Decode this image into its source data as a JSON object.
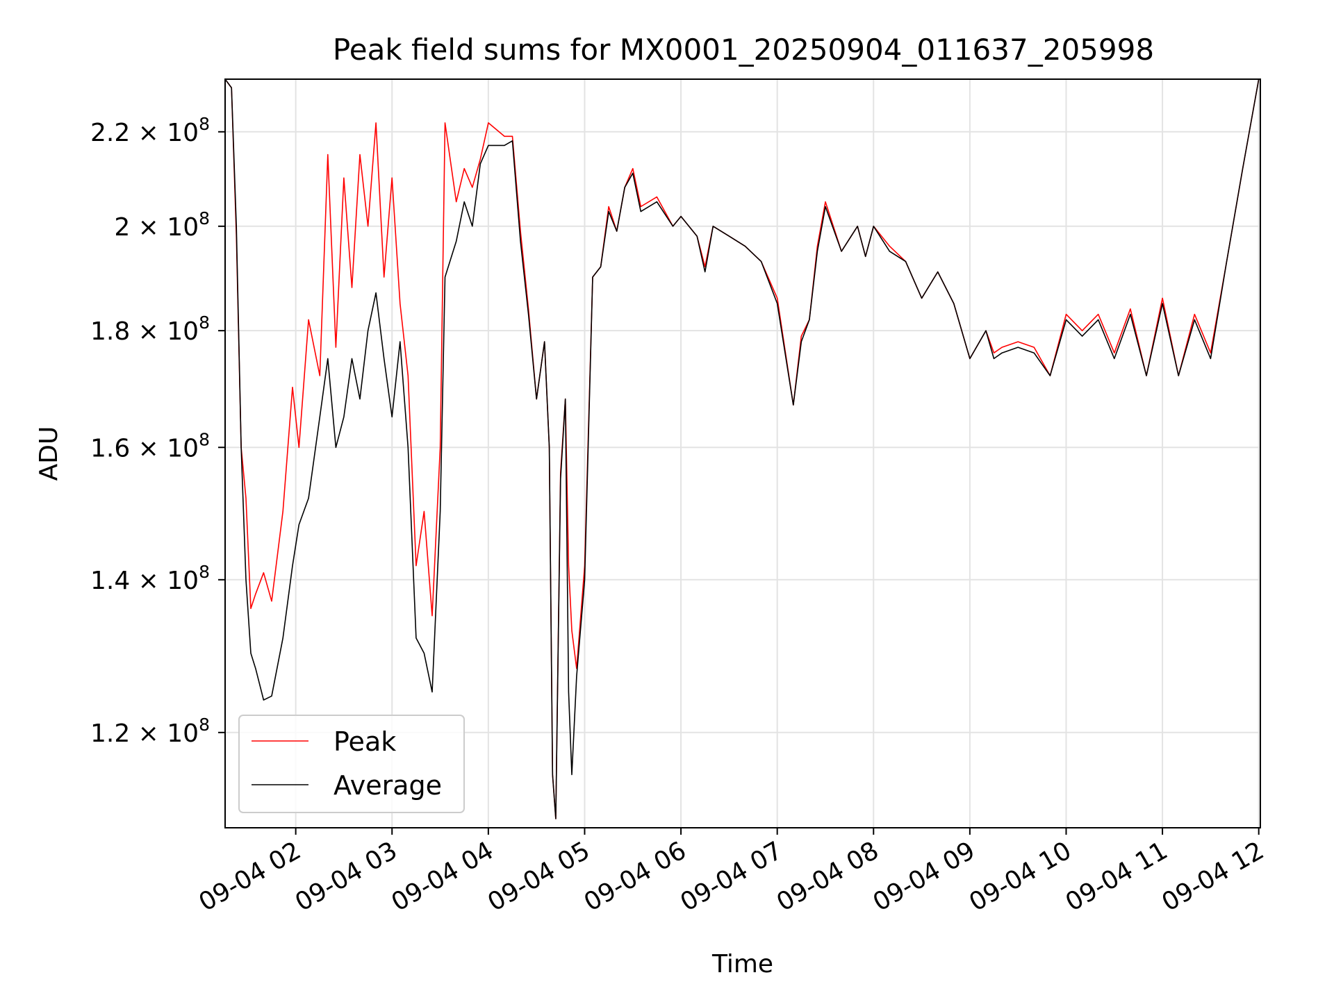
{
  "chart_data": {
    "type": "line",
    "title": "Peak field sums for MX0001_20250904_011637_205998",
    "xlabel": "Time",
    "ylabel": "ADU",
    "y_scale": "log",
    "ylim": [
      109000000,
      232000000
    ],
    "xlim": [
      "09-04 01:16",
      "09-04 12:01"
    ],
    "grid": true,
    "legend_position": "lower left",
    "x_tick_labels": [
      "09-04 02",
      "09-04 03",
      "09-04 04",
      "09-04 05",
      "09-04 06",
      "09-04 07",
      "09-04 08",
      "09-04 09",
      "09-04 10",
      "09-04 11",
      "09-04 12"
    ],
    "y_ticks": [
      {
        "value": 120000000,
        "mantissa": "1.2",
        "exponent": "8"
      },
      {
        "value": 140000000,
        "mantissa": "1.4",
        "exponent": "8"
      },
      {
        "value": 160000000,
        "mantissa": "1.6",
        "exponent": "8"
      },
      {
        "value": 180000000,
        "mantissa": "1.8",
        "exponent": "8"
      },
      {
        "value": 200000000,
        "mantissa": "2",
        "exponent": "8"
      },
      {
        "value": 220000000,
        "mantissa": "2.2",
        "exponent": "8"
      }
    ],
    "series": [
      {
        "name": "Average",
        "color": "#000000",
        "x": [
          "09-04 01:16",
          "09-04 01:20",
          "09-04 01:23",
          "09-04 01:26",
          "09-04 01:29",
          "09-04 01:32",
          "09-04 01:35",
          "09-04 01:40",
          "09-04 01:45",
          "09-04 01:52",
          "09-04 01:58",
          "09-04 02:02",
          "09-04 02:08",
          "09-04 02:15",
          "09-04 02:20",
          "09-04 02:25",
          "09-04 02:30",
          "09-04 02:35",
          "09-04 02:40",
          "09-04 02:45",
          "09-04 02:50",
          "09-04 02:55",
          "09-04 03:00",
          "09-04 03:05",
          "09-04 03:10",
          "09-04 03:15",
          "09-04 03:20",
          "09-04 03:25",
          "09-04 03:30",
          "09-04 03:33",
          "09-04 03:40",
          "09-04 03:45",
          "09-04 03:50",
          "09-04 03:55",
          "09-04 04:00",
          "09-04 04:10",
          "09-04 04:15",
          "09-04 04:20",
          "09-04 04:25",
          "09-04 04:30",
          "09-04 04:35",
          "09-04 04:38",
          "09-04 04:40",
          "09-04 04:42",
          "09-04 04:45",
          "09-04 04:48",
          "09-04 04:50",
          "09-04 04:52",
          "09-04 04:55",
          "09-04 05:00",
          "09-04 05:05",
          "09-04 05:10",
          "09-04 05:15",
          "09-04 05:20",
          "09-04 05:25",
          "09-04 05:30",
          "09-04 05:35",
          "09-04 05:45",
          "09-04 05:55",
          "09-04 06:00",
          "09-04 06:10",
          "09-04 06:15",
          "09-04 06:20",
          "09-04 06:30",
          "09-04 06:40",
          "09-04 06:50",
          "09-04 07:00",
          "09-04 07:10",
          "09-04 07:15",
          "09-04 07:20",
          "09-04 07:25",
          "09-04 07:30",
          "09-04 07:40",
          "09-04 07:50",
          "09-04 07:55",
          "09-04 08:00",
          "09-04 08:10",
          "09-04 08:20",
          "09-04 08:30",
          "09-04 08:40",
          "09-04 08:50",
          "09-04 09:00",
          "09-04 09:10",
          "09-04 09:15",
          "09-04 09:20",
          "09-04 09:30",
          "09-04 09:40",
          "09-04 09:50",
          "09-04 10:00",
          "09-04 10:10",
          "09-04 10:20",
          "09-04 10:30",
          "09-04 10:40",
          "09-04 10:50",
          "09-04 11:00",
          "09-04 11:10",
          "09-04 11:20",
          "09-04 11:30",
          "09-04 11:40",
          "09-04 11:50",
          "09-04 12:00"
        ],
        "y": [
          232000000,
          230000000,
          200000000,
          160000000,
          140000000,
          130000000,
          128000000,
          124000000,
          124500000,
          132000000,
          142000000,
          148000000,
          152000000,
          165000000,
          175000000,
          160000000,
          165000000,
          175000000,
          168000000,
          180000000,
          187000000,
          175000000,
          165000000,
          178000000,
          160000000,
          132000000,
          130000000,
          125000000,
          150000000,
          190000000,
          197000000,
          205000000,
          200000000,
          213000000,
          217000000,
          217000000,
          218000000,
          197000000,
          183000000,
          168000000,
          178000000,
          160000000,
          115000000,
          110000000,
          155000000,
          168000000,
          125000000,
          115000000,
          127000000,
          140000000,
          190000000,
          192000000,
          203000000,
          199000000,
          208000000,
          211000000,
          203000000,
          205000000,
          200000000,
          202000000,
          198000000,
          191000000,
          200000000,
          198000000,
          196000000,
          193000000,
          185000000,
          167000000,
          178000000,
          182000000,
          195000000,
          204000000,
          195000000,
          200000000,
          194000000,
          200000000,
          195000000,
          193000000,
          186000000,
          191000000,
          185000000,
          175000000,
          180000000,
          175000000,
          176000000,
          177000000,
          176000000,
          172000000,
          182000000,
          179000000,
          182000000,
          175000000,
          183000000,
          172000000,
          185000000,
          172000000,
          182000000,
          175000000,
          193000000,
          212000000,
          232000000
        ]
      },
      {
        "name": "Peak",
        "color": "#ff0000",
        "x": [
          "09-04 01:16",
          "09-04 01:20",
          "09-04 01:23",
          "09-04 01:26",
          "09-04 01:29",
          "09-04 01:32",
          "09-04 01:35",
          "09-04 01:40",
          "09-04 01:45",
          "09-04 01:52",
          "09-04 01:58",
          "09-04 02:02",
          "09-04 02:08",
          "09-04 02:15",
          "09-04 02:20",
          "09-04 02:25",
          "09-04 02:30",
          "09-04 02:35",
          "09-04 02:40",
          "09-04 02:45",
          "09-04 02:50",
          "09-04 02:55",
          "09-04 03:00",
          "09-04 03:05",
          "09-04 03:10",
          "09-04 03:15",
          "09-04 03:20",
          "09-04 03:25",
          "09-04 03:30",
          "09-04 03:33",
          "09-04 03:40",
          "09-04 03:45",
          "09-04 03:50",
          "09-04 03:55",
          "09-04 04:00",
          "09-04 04:10",
          "09-04 04:15",
          "09-04 04:20",
          "09-04 04:25",
          "09-04 04:30",
          "09-04 04:35",
          "09-04 04:38",
          "09-04 04:40",
          "09-04 04:42",
          "09-04 04:45",
          "09-04 04:48",
          "09-04 04:50",
          "09-04 04:52",
          "09-04 04:55",
          "09-04 05:00",
          "09-04 05:05",
          "09-04 05:10",
          "09-04 05:15",
          "09-04 05:20",
          "09-04 05:25",
          "09-04 05:30",
          "09-04 05:35",
          "09-04 05:45",
          "09-04 05:55",
          "09-04 06:00",
          "09-04 06:10",
          "09-04 06:15",
          "09-04 06:20",
          "09-04 06:30",
          "09-04 06:40",
          "09-04 06:50",
          "09-04 07:00",
          "09-04 07:10",
          "09-04 07:15",
          "09-04 07:20",
          "09-04 07:25",
          "09-04 07:30",
          "09-04 07:40",
          "09-04 07:50",
          "09-04 07:55",
          "09-04 08:00",
          "09-04 08:10",
          "09-04 08:20",
          "09-04 08:30",
          "09-04 08:40",
          "09-04 08:50",
          "09-04 09:00",
          "09-04 09:10",
          "09-04 09:15",
          "09-04 09:20",
          "09-04 09:30",
          "09-04 09:40",
          "09-04 09:50",
          "09-04 10:00",
          "09-04 10:10",
          "09-04 10:20",
          "09-04 10:30",
          "09-04 10:40",
          "09-04 10:50",
          "09-04 11:00",
          "09-04 11:10",
          "09-04 11:20",
          "09-04 11:30",
          "09-04 11:40",
          "09-04 11:50",
          "09-04 12:00"
        ],
        "y": [
          232000000,
          230000000,
          198000000,
          160000000,
          152000000,
          136000000,
          138000000,
          141000000,
          137000000,
          150000000,
          170000000,
          160000000,
          182000000,
          172000000,
          215000000,
          177000000,
          210000000,
          188000000,
          215000000,
          200000000,
          222000000,
          190000000,
          210000000,
          185000000,
          172000000,
          142000000,
          150000000,
          135000000,
          160000000,
          222000000,
          205000000,
          212000000,
          208000000,
          214000000,
          222000000,
          219000000,
          219000000,
          199000000,
          184000000,
          168000000,
          178000000,
          160000000,
          115000000,
          110000000,
          156000000,
          168000000,
          142000000,
          133000000,
          128000000,
          142000000,
          190000000,
          192000000,
          204000000,
          199000000,
          208000000,
          212000000,
          204000000,
          206000000,
          200000000,
          202000000,
          198000000,
          192000000,
          200000000,
          198000000,
          196000000,
          193000000,
          186000000,
          167000000,
          179000000,
          182000000,
          196000000,
          205000000,
          195000000,
          200000000,
          194000000,
          200000000,
          196000000,
          193000000,
          186000000,
          191000000,
          185000000,
          175000000,
          180000000,
          176000000,
          177000000,
          178000000,
          177000000,
          172000000,
          183000000,
          180000000,
          183000000,
          176000000,
          184000000,
          172000000,
          186000000,
          172000000,
          183000000,
          176000000,
          193000000,
          212000000,
          232000000
        ]
      }
    ]
  }
}
